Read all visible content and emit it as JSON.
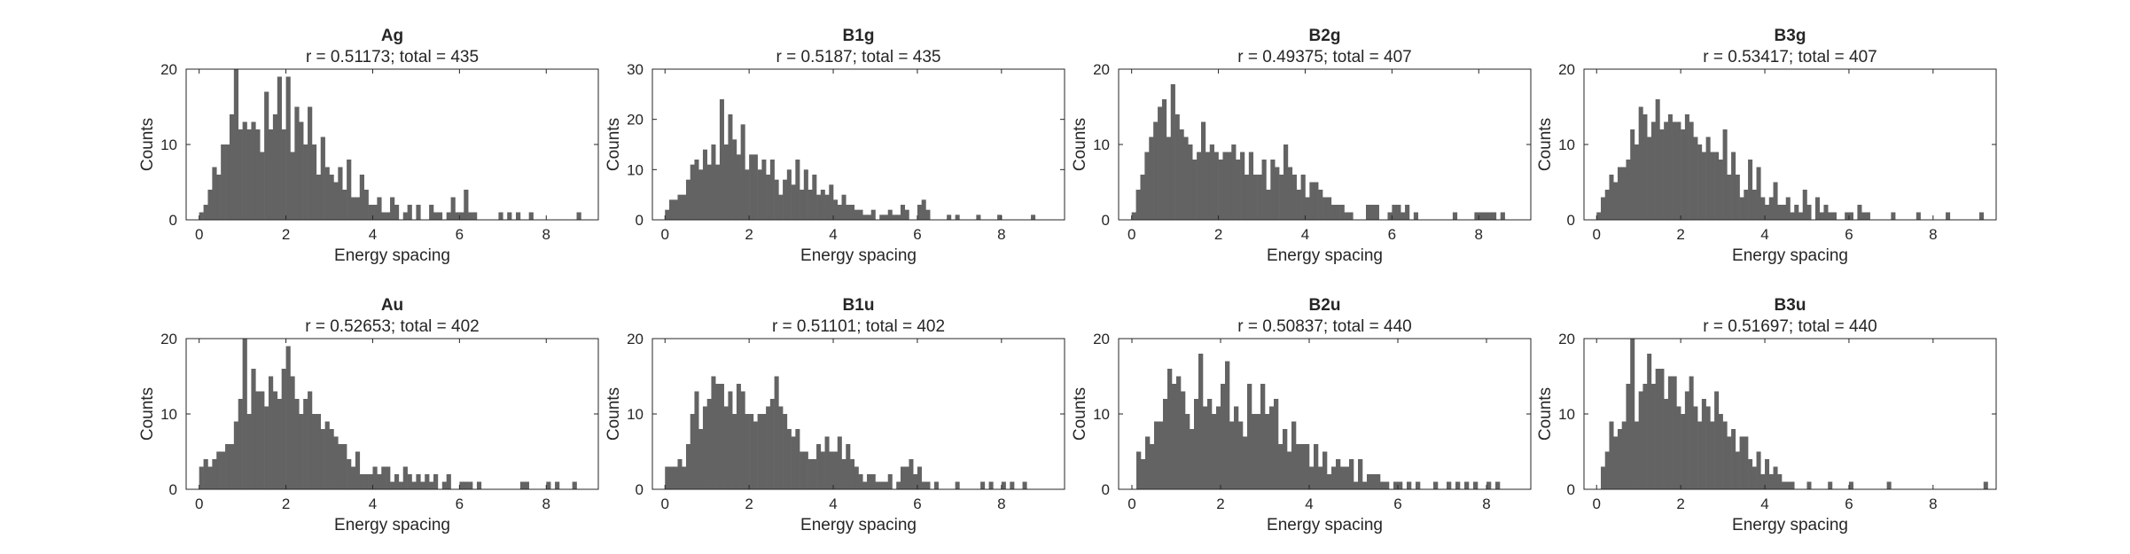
{
  "figure": {
    "bar_color": "#636363",
    "axis_color": "#262626",
    "background": "#ffffff"
  },
  "chart_data": [
    {
      "type": "bar",
      "title": "Ag",
      "subtitle": "r = 0.51173; total = 435",
      "xlabel": "Energy spacing",
      "ylabel": "Counts",
      "xlim": [
        -0.3,
        9.2
      ],
      "ylim": [
        0,
        20
      ],
      "xticks": [
        0,
        2,
        4,
        6,
        8
      ],
      "yticks": [
        0,
        10,
        20
      ],
      "bin_start": 0.05,
      "bin_width": 0.1,
      "values": [
        1,
        2,
        4,
        7,
        6,
        10,
        10,
        14,
        20,
        12,
        13,
        12,
        13,
        12,
        9,
        17,
        12,
        14,
        19,
        12,
        19,
        9,
        15,
        13,
        10,
        15,
        10,
        6,
        11,
        7,
        6,
        5,
        7,
        4,
        8,
        3,
        3,
        6,
        4,
        2,
        2,
        3,
        1,
        1,
        3,
        2,
        0,
        1,
        2,
        0,
        2,
        0,
        0,
        2,
        1,
        1,
        0,
        1,
        3,
        1,
        1,
        4,
        1,
        1,
        0,
        0,
        0,
        0,
        0,
        1,
        0,
        1,
        0,
        1,
        0,
        0,
        1,
        0,
        0,
        0,
        0,
        0,
        0,
        0,
        0,
        0,
        0,
        1
      ]
    },
    {
      "type": "bar",
      "title": "B1g",
      "subtitle": "r = 0.5187; total = 435",
      "xlabel": "Energy spacing",
      "ylabel": "Counts",
      "xlim": [
        -0.3,
        9.5
      ],
      "ylim": [
        0,
        30
      ],
      "xticks": [
        0,
        2,
        4,
        6,
        8
      ],
      "yticks": [
        0,
        10,
        20,
        30
      ],
      "bin_start": 0.05,
      "bin_width": 0.1,
      "values": [
        2,
        4,
        4,
        5,
        5,
        8,
        11,
        12,
        10,
        14,
        11,
        15,
        11,
        24,
        15,
        21,
        16,
        13,
        19,
        10,
        13,
        13,
        10,
        12,
        9,
        12,
        8,
        5,
        8,
        10,
        7,
        12,
        6,
        10,
        6,
        9,
        5,
        6,
        5,
        7,
        4,
        3,
        5,
        3,
        3,
        2,
        2,
        1,
        1,
        2,
        0,
        1,
        1,
        2,
        1,
        1,
        3,
        2,
        0,
        0,
        3,
        4,
        2,
        0,
        0,
        0,
        0,
        1,
        0,
        1,
        0,
        0,
        0,
        0,
        1,
        0,
        0,
        0,
        0,
        1,
        0,
        0,
        0,
        0,
        0,
        0,
        0,
        1
      ]
    },
    {
      "type": "bar",
      "title": "B2g",
      "subtitle": "r = 0.49375; total = 407",
      "xlabel": "Energy spacing",
      "ylabel": "Counts",
      "xlim": [
        -0.3,
        9.2
      ],
      "ylim": [
        0,
        20
      ],
      "xticks": [
        0,
        2,
        4,
        6,
        8
      ],
      "yticks": [
        0,
        10,
        20
      ],
      "bin_start": 0.05,
      "bin_width": 0.1,
      "values": [
        1,
        4,
        6,
        9,
        11,
        13,
        15,
        16,
        11,
        18,
        14,
        12,
        11,
        10,
        8,
        9,
        13,
        9,
        10,
        9,
        8,
        9,
        9,
        10,
        8,
        9,
        6,
        9,
        6,
        6,
        8,
        4,
        8,
        7,
        6,
        10,
        7,
        6,
        4,
        6,
        3,
        5,
        5,
        4,
        3,
        3,
        2,
        2,
        2,
        1,
        1,
        0,
        0,
        0,
        2,
        2,
        2,
        0,
        0,
        1,
        2,
        2,
        1,
        2,
        0,
        1,
        0,
        0,
        0,
        0,
        0,
        0,
        0,
        0,
        1,
        0,
        0,
        0,
        0,
        1,
        1,
        1,
        1,
        1,
        0,
        1
      ]
    },
    {
      "type": "bar",
      "title": "B3g",
      "subtitle": "r = 0.53417; total = 407",
      "xlabel": "Energy spacing",
      "ylabel": "Counts",
      "xlim": [
        -0.3,
        9.5
      ],
      "ylim": [
        0,
        20
      ],
      "xticks": [
        0,
        2,
        4,
        6,
        8
      ],
      "yticks": [
        0,
        10,
        20
      ],
      "bin_start": 0.05,
      "bin_width": 0.1,
      "values": [
        1,
        3,
        4,
        6,
        5,
        7,
        7,
        8,
        12,
        10,
        15,
        14,
        11,
        13,
        16,
        12,
        13,
        14,
        13,
        13,
        12,
        14,
        13,
        11,
        10,
        9,
        11,
        9,
        9,
        8,
        12,
        6,
        9,
        6,
        3,
        4,
        8,
        4,
        7,
        3,
        2,
        3,
        5,
        2,
        2,
        3,
        1,
        2,
        1,
        4,
        2,
        0,
        3,
        1,
        2,
        1,
        1,
        0,
        0,
        1,
        1,
        0,
        2,
        1,
        1,
        0,
        0,
        0,
        0,
        0,
        1,
        0,
        0,
        0,
        0,
        0,
        1,
        0,
        0,
        0,
        0,
        0,
        0,
        1,
        0,
        0,
        0,
        0,
        0,
        0,
        0,
        1
      ]
    },
    {
      "type": "bar",
      "title": "Au",
      "subtitle": "r = 0.52653; total = 402",
      "xlabel": "Energy spacing",
      "ylabel": "Counts",
      "xlim": [
        -0.3,
        9.2
      ],
      "ylim": [
        0,
        20
      ],
      "xticks": [
        0,
        2,
        4,
        6,
        8
      ],
      "yticks": [
        0,
        10,
        20
      ],
      "bin_start": 0.05,
      "bin_width": 0.1,
      "values": [
        3,
        4,
        3,
        4,
        5,
        5,
        6,
        6,
        9,
        12,
        20,
        10,
        16,
        13,
        13,
        11,
        15,
        13,
        12,
        16,
        19,
        15,
        12,
        10,
        12,
        13,
        10,
        10,
        8,
        9,
        8,
        7,
        6,
        6,
        4,
        3,
        5,
        2,
        2,
        2,
        3,
        2,
        3,
        3,
        1,
        2,
        1,
        3,
        2,
        1,
        2,
        1,
        2,
        1,
        2,
        0,
        1,
        2,
        0,
        0,
        1,
        1,
        1,
        0,
        1,
        0,
        0,
        0,
        0,
        0,
        0,
        0,
        0,
        0,
        1,
        1,
        0,
        0,
        0,
        0,
        1,
        0,
        1,
        0,
        0,
        0,
        1
      ]
    },
    {
      "type": "bar",
      "title": "B1u",
      "subtitle": "r = 0.51101; total = 402",
      "xlabel": "Energy spacing",
      "ylabel": "Counts",
      "xlim": [
        -0.3,
        9.5
      ],
      "ylim": [
        0,
        20
      ],
      "xticks": [
        0,
        2,
        4,
        6,
        8
      ],
      "yticks": [
        0,
        10,
        20
      ],
      "bin_start": 0.05,
      "bin_width": 0.1,
      "values": [
        3,
        3,
        3,
        4,
        3,
        6,
        10,
        13,
        8,
        11,
        12,
        15,
        14,
        14,
        11,
        13,
        10,
        14,
        13,
        10,
        10,
        9,
        10,
        10,
        11,
        12,
        15,
        11,
        10,
        8,
        7,
        8,
        5,
        5,
        4,
        4,
        6,
        5,
        7,
        5,
        5,
        7,
        4,
        6,
        4,
        3,
        2,
        1,
        2,
        2,
        1,
        1,
        1,
        2,
        0,
        1,
        3,
        3,
        4,
        2,
        3,
        1,
        1,
        0,
        1,
        0,
        0,
        0,
        0,
        1,
        0,
        0,
        0,
        0,
        0,
        1,
        0,
        1,
        0,
        0,
        1,
        0,
        1,
        0,
        0,
        1
      ]
    },
    {
      "type": "bar",
      "title": "B2u",
      "subtitle": "r = 0.50837; total = 440",
      "xlabel": "Energy spacing",
      "ylabel": "Counts",
      "xlim": [
        -0.3,
        9.0
      ],
      "ylim": [
        0,
        20
      ],
      "xticks": [
        0,
        2,
        4,
        6,
        8
      ],
      "yticks": [
        0,
        10,
        20
      ],
      "bin_start": 0.05,
      "bin_width": 0.1,
      "values": [
        0,
        5,
        4,
        7,
        6,
        9,
        9,
        12,
        16,
        14,
        15,
        13,
        10,
        8,
        12,
        18,
        11,
        12,
        10,
        11,
        14,
        17,
        9,
        11,
        9,
        7,
        14,
        10,
        10,
        14,
        10,
        11,
        12,
        6,
        8,
        5,
        9,
        6,
        6,
        6,
        3,
        6,
        3,
        5,
        2,
        3,
        4,
        3,
        3,
        4,
        1,
        4,
        1,
        2,
        2,
        2,
        1,
        1,
        0,
        1,
        1,
        0,
        1,
        0,
        1,
        0,
        0,
        0,
        1,
        0,
        0,
        1,
        0,
        1,
        0,
        1,
        0,
        1,
        0,
        0,
        1,
        0,
        1
      ]
    },
    {
      "type": "bar",
      "title": "B3u",
      "subtitle": "r = 0.51697; total = 440",
      "xlabel": "Energy spacing",
      "ylabel": "Counts",
      "xlim": [
        -0.3,
        9.5
      ],
      "ylim": [
        0,
        20
      ],
      "xticks": [
        0,
        2,
        4,
        6,
        8
      ],
      "yticks": [
        0,
        10,
        20
      ],
      "bin_start": 0.05,
      "bin_width": 0.1,
      "values": [
        0,
        3,
        5,
        9,
        7,
        8,
        9,
        14,
        20,
        9,
        13,
        14,
        18,
        14,
        16,
        16,
        12,
        15,
        15,
        11,
        10,
        13,
        15,
        11,
        9,
        12,
        11,
        9,
        13,
        10,
        9,
        7,
        8,
        5,
        7,
        7,
        4,
        3,
        5,
        2,
        4,
        2,
        3,
        2,
        1,
        1,
        1,
        0,
        0,
        0,
        1,
        0,
        0,
        0,
        0,
        1,
        0,
        0,
        0,
        0,
        1,
        0,
        0,
        0,
        0,
        0,
        0,
        0,
        0,
        1,
        0,
        0,
        0,
        0,
        0,
        0,
        0,
        0,
        0,
        0,
        0,
        0,
        0,
        0,
        0,
        0,
        0,
        0,
        0,
        0,
        0,
        0,
        1
      ]
    }
  ]
}
